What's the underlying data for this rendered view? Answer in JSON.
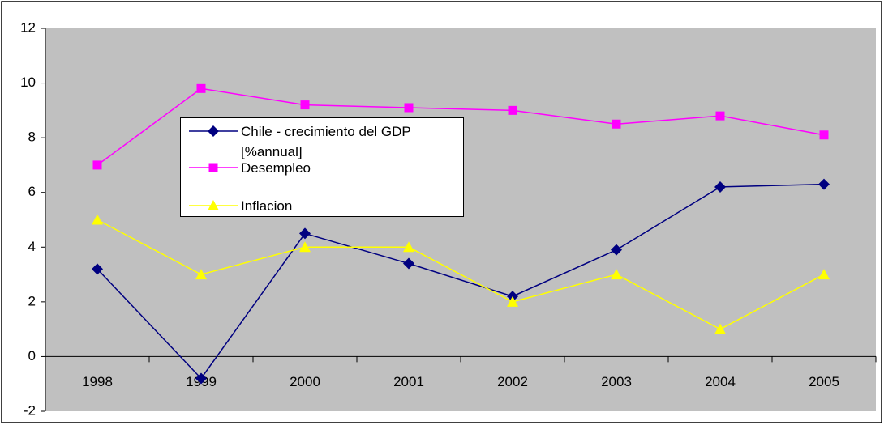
{
  "chart_data": {
    "type": "line",
    "categories": [
      "1998",
      "1999",
      "2000",
      "2001",
      "2002",
      "2003",
      "2004",
      "2005"
    ],
    "series": [
      {
        "name": "Chile - crecimiento del GDP [%annual]",
        "color": "#000080",
        "marker": "diamond",
        "values": [
          3.2,
          -0.8,
          4.5,
          3.4,
          2.2,
          3.9,
          6.2,
          6.3
        ]
      },
      {
        "name": "Desempleo",
        "color": "#ff00ff",
        "marker": "square",
        "values": [
          7.0,
          9.8,
          9.2,
          9.1,
          9.0,
          8.5,
          8.8,
          8.1
        ]
      },
      {
        "name": "Inflacion",
        "color": "#ffff00",
        "marker": "triangle",
        "values": [
          5,
          3,
          4,
          4,
          2,
          3,
          1,
          3
        ]
      }
    ],
    "ylim": [
      -2,
      12
    ],
    "yticks": [
      -2,
      0,
      2,
      4,
      6,
      8,
      10,
      12
    ],
    "grid": false,
    "plot_background": "#c0c0c0"
  }
}
